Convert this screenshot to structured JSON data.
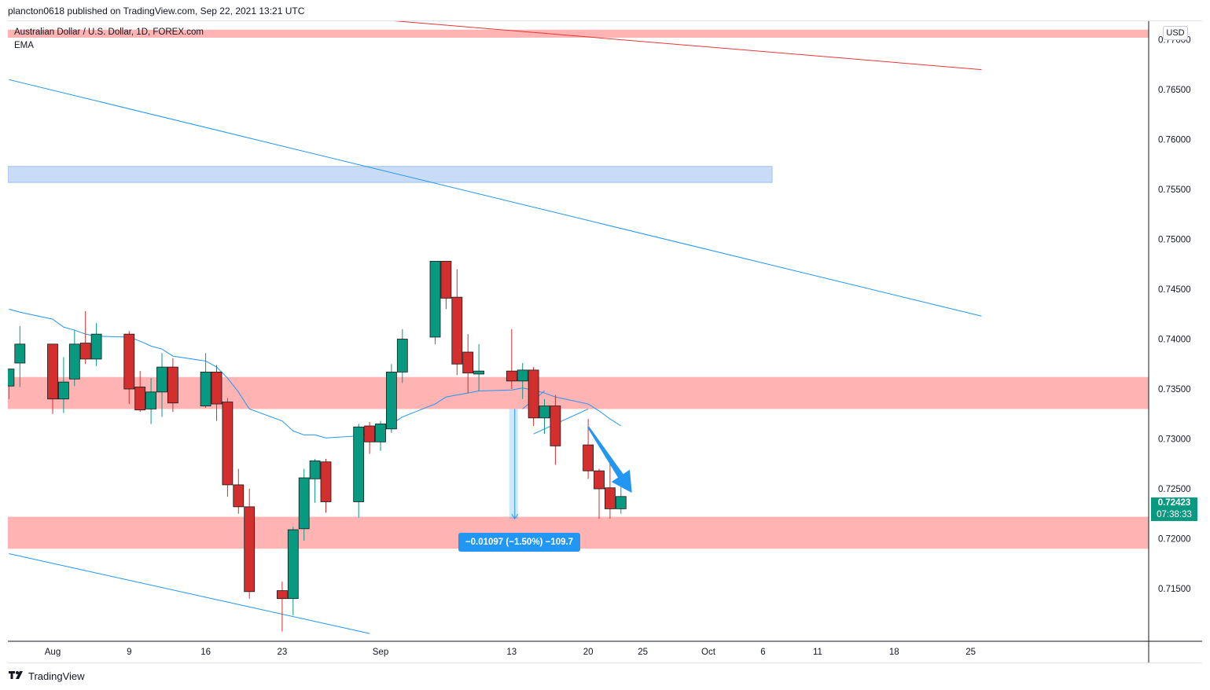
{
  "header": {
    "caption": "plancton0618 published on TradingView.com, Sep 22, 2021 13:21 UTC"
  },
  "chart": {
    "symbol_title": "Australian Dollar / U.S. Dollar, 1D, FOREX.com",
    "indicator": "EMA",
    "currency": "USD",
    "last_price": "0.72423",
    "countdown": "07:38:33",
    "measure_label": "−0.01097 (−1.50%) −109.7"
  },
  "footer": {
    "brand": "TradingView",
    "logo_icon": "tradingview-logo-icon"
  },
  "colors": {
    "up": "#089981",
    "down": "#d32f2f",
    "neutral_body": "#4b5a57",
    "ema": "#2196f3",
    "zone_red": "#ffb3b3",
    "zone_blue": "#c8dcf7",
    "trend_red": "#e53935",
    "trend_blue": "#2196f3"
  },
  "chart_data": {
    "type": "candlestick",
    "price_axis": {
      "ticks": [
        0.77,
        0.765,
        0.76,
        0.755,
        0.75,
        0.745,
        0.74,
        0.735,
        0.73,
        0.725,
        0.72,
        0.715
      ],
      "tick_labels": [
        "0.77000",
        "0.76500",
        "0.76000",
        "0.75500",
        "0.75000",
        "0.74500",
        "0.74000",
        "0.73500",
        "0.73000",
        "0.72500",
        "0.72000",
        "0.71500"
      ]
    },
    "time_axis": {
      "labels": [
        {
          "label": "Aug",
          "date": "2021-08-02"
        },
        {
          "label": "9",
          "date": "2021-08-09"
        },
        {
          "label": "16",
          "date": "2021-08-16"
        },
        {
          "label": "23",
          "date": "2021-08-23"
        },
        {
          "label": "Sep",
          "date": "2021-09-01"
        },
        {
          "label": "13",
          "date": "2021-09-13"
        },
        {
          "label": "20",
          "date": "2021-09-20"
        },
        {
          "label": "25",
          "date": "2021-09-25"
        },
        {
          "label": "Oct",
          "date": "2021-10-01"
        },
        {
          "label": "6",
          "date": "2021-10-06"
        },
        {
          "label": "11",
          "date": "2021-10-11"
        },
        {
          "label": "18",
          "date": "2021-10-18"
        },
        {
          "label": "25",
          "date": "2021-10-25"
        }
      ]
    },
    "candles": [
      {
        "d": "2021-07-29",
        "o": 0.7353,
        "h": 0.737,
        "l": 0.734,
        "c": 0.737
      },
      {
        "d": "2021-07-30",
        "o": 0.7376,
        "h": 0.7413,
        "l": 0.7352,
        "c": 0.7395
      },
      {
        "d": "2021-08-02",
        "o": 0.7395,
        "h": 0.7395,
        "l": 0.7325,
        "c": 0.734
      },
      {
        "d": "2021-08-03",
        "o": 0.734,
        "h": 0.7382,
        "l": 0.7326,
        "c": 0.7357
      },
      {
        "d": "2021-08-04",
        "o": 0.736,
        "h": 0.7409,
        "l": 0.7353,
        "c": 0.7395
      },
      {
        "d": "2021-08-05",
        "o": 0.7396,
        "h": 0.7428,
        "l": 0.7375,
        "c": 0.738
      },
      {
        "d": "2021-08-06",
        "o": 0.738,
        "h": 0.7416,
        "l": 0.7373,
        "c": 0.7405
      },
      {
        "d": "2021-08-09",
        "o": 0.7405,
        "h": 0.7408,
        "l": 0.7335,
        "c": 0.735
      },
      {
        "d": "2021-08-10",
        "o": 0.7352,
        "h": 0.7368,
        "l": 0.7327,
        "c": 0.7329
      },
      {
        "d": "2021-08-11",
        "o": 0.733,
        "h": 0.7361,
        "l": 0.7315,
        "c": 0.7347
      },
      {
        "d": "2021-08-12",
        "o": 0.7347,
        "h": 0.7386,
        "l": 0.7322,
        "c": 0.7372
      },
      {
        "d": "2021-08-13",
        "o": 0.7372,
        "h": 0.7381,
        "l": 0.7327,
        "c": 0.7336
      },
      {
        "d": "2021-08-16",
        "o": 0.7333,
        "h": 0.7386,
        "l": 0.7331,
        "c": 0.7367
      },
      {
        "d": "2021-08-17",
        "o": 0.7367,
        "h": 0.7374,
        "l": 0.7318,
        "c": 0.7335
      },
      {
        "d": "2021-08-18",
        "o": 0.7337,
        "h": 0.7341,
        "l": 0.7242,
        "c": 0.7254
      },
      {
        "d": "2021-08-19",
        "o": 0.7254,
        "h": 0.727,
        "l": 0.7225,
        "c": 0.7232
      },
      {
        "d": "2021-08-20",
        "o": 0.7232,
        "h": 0.725,
        "l": 0.714,
        "c": 0.7147
      },
      {
        "d": "2021-08-23",
        "o": 0.7148,
        "h": 0.7157,
        "l": 0.7107,
        "c": 0.714
      },
      {
        "d": "2021-08-24",
        "o": 0.714,
        "h": 0.7212,
        "l": 0.7123,
        "c": 0.7209
      },
      {
        "d": "2021-08-25",
        "o": 0.721,
        "h": 0.727,
        "l": 0.7198,
        "c": 0.7261
      },
      {
        "d": "2021-08-26",
        "o": 0.726,
        "h": 0.728,
        "l": 0.7236,
        "c": 0.7278
      },
      {
        "d": "2021-08-27",
        "o": 0.7277,
        "h": 0.728,
        "l": 0.7226,
        "c": 0.7237
      },
      {
        "d": "2021-08-30",
        "o": 0.7237,
        "h": 0.7315,
        "l": 0.7221,
        "c": 0.7312
      },
      {
        "d": "2021-08-31",
        "o": 0.7313,
        "h": 0.7317,
        "l": 0.7285,
        "c": 0.7297
      },
      {
        "d": "2021-09-01",
        "o": 0.7297,
        "h": 0.7318,
        "l": 0.7288,
        "c": 0.7315
      },
      {
        "d": "2021-09-02",
        "o": 0.731,
        "h": 0.7375,
        "l": 0.7306,
        "c": 0.7367
      },
      {
        "d": "2021-09-03",
        "o": 0.7367,
        "h": 0.741,
        "l": 0.7356,
        "c": 0.74
      },
      {
        "d": "2021-09-06",
        "o": 0.7402,
        "h": 0.7478,
        "l": 0.7395,
        "c": 0.7478
      },
      {
        "d": "2021-09-07",
        "o": 0.7478,
        "h": 0.7478,
        "l": 0.743,
        "c": 0.7441
      },
      {
        "d": "2021-09-08",
        "o": 0.7442,
        "h": 0.747,
        "l": 0.7364,
        "c": 0.7375
      },
      {
        "d": "2021-09-09",
        "o": 0.7387,
        "h": 0.7405,
        "l": 0.7346,
        "c": 0.7366
      },
      {
        "d": "2021-09-10",
        "o": 0.7365,
        "h": 0.7395,
        "l": 0.7348,
        "c": 0.7368
      },
      {
        "d": "2021-09-13",
        "o": 0.7368,
        "h": 0.741,
        "l": 0.735,
        "c": 0.7358
      },
      {
        "d": "2021-09-14",
        "o": 0.7358,
        "h": 0.7376,
        "l": 0.734,
        "c": 0.7369
      },
      {
        "d": "2021-09-15",
        "o": 0.7369,
        "h": 0.7372,
        "l": 0.7313,
        "c": 0.7321
      },
      {
        "d": "2021-09-16",
        "o": 0.7321,
        "h": 0.734,
        "l": 0.7305,
        "c": 0.7333
      },
      {
        "d": "2021-09-17",
        "o": 0.7333,
        "h": 0.7344,
        "l": 0.7274,
        "c": 0.7293
      },
      {
        "d": "2021-09-20",
        "o": 0.7294,
        "h": 0.732,
        "l": 0.726,
        "c": 0.7268
      },
      {
        "d": "2021-09-21",
        "o": 0.7268,
        "h": 0.727,
        "l": 0.722,
        "c": 0.725
      },
      {
        "d": "2021-09-22",
        "o": 0.7251,
        "h": 0.7283,
        "l": 0.722,
        "c": 0.723
      },
      {
        "d": "2021-09-23",
        "o": 0.723,
        "h": 0.7268,
        "l": 0.7225,
        "c": 0.72423
      }
    ],
    "ema": [
      0.743,
      0.7427,
      0.742,
      0.7412,
      0.7409,
      0.7405,
      0.7403,
      0.7402,
      0.7398,
      0.7393,
      0.739,
      0.7383,
      0.7378,
      0.7372,
      0.7361,
      0.7347,
      0.733,
      0.7318,
      0.7308,
      0.7304,
      0.7304,
      0.7301,
      0.7303,
      0.7306,
      0.7309,
      0.7315,
      0.7322,
      0.7335,
      0.7342,
      0.7344,
      0.7346,
      0.7348,
      0.7349,
      0.7351,
      0.7349,
      0.7346,
      0.7342,
      0.7335,
      0.7328,
      0.732,
      0.7313
    ],
    "zones": [
      {
        "kind": "resistance",
        "color": "red",
        "from": 0.771,
        "to": 0.7702
      },
      {
        "kind": "supply",
        "color": "blue",
        "from": 0.7573,
        "to": 0.7557
      },
      {
        "kind": "pivot",
        "color": "red",
        "from": 0.7362,
        "to": 0.733
      },
      {
        "kind": "support",
        "color": "red",
        "from": 0.7222,
        "to": 0.719
      }
    ],
    "trendlines": [
      {
        "color": "red",
        "p1": {
          "d": "2021-09-01",
          "v": 0.772
        },
        "p2": {
          "d": "2021-10-26",
          "v": 0.767
        }
      },
      {
        "color": "blue",
        "p1": {
          "d": "2021-07-29",
          "v": 0.766
        },
        "p2": {
          "d": "2021-10-26",
          "v": 0.7423
        }
      },
      {
        "color": "blue",
        "p1": {
          "d": "2021-07-29",
          "v": 0.7185
        },
        "p2": {
          "d": "2021-08-31",
          "v": 0.7105
        }
      },
      {
        "color": "blue",
        "p1": {
          "d": "2021-09-15",
          "v": 0.7305
        },
        "p2": {
          "d": "2021-09-20",
          "v": 0.733
        }
      },
      {
        "color": "blue",
        "p1": {
          "d": "2021-09-14",
          "v": 0.733
        },
        "p2": {
          "d": "2021-09-16",
          "v": 0.7348
        }
      }
    ],
    "measure": {
      "from_date": "2021-09-13",
      "to_date": "2021-09-14",
      "start": 0.733,
      "end": 0.722
    },
    "projection_arrow": {
      "from": {
        "d": "2021-09-20",
        "v": 0.7312
      },
      "to": {
        "d": "2021-09-24",
        "v": 0.7246
      }
    }
  }
}
